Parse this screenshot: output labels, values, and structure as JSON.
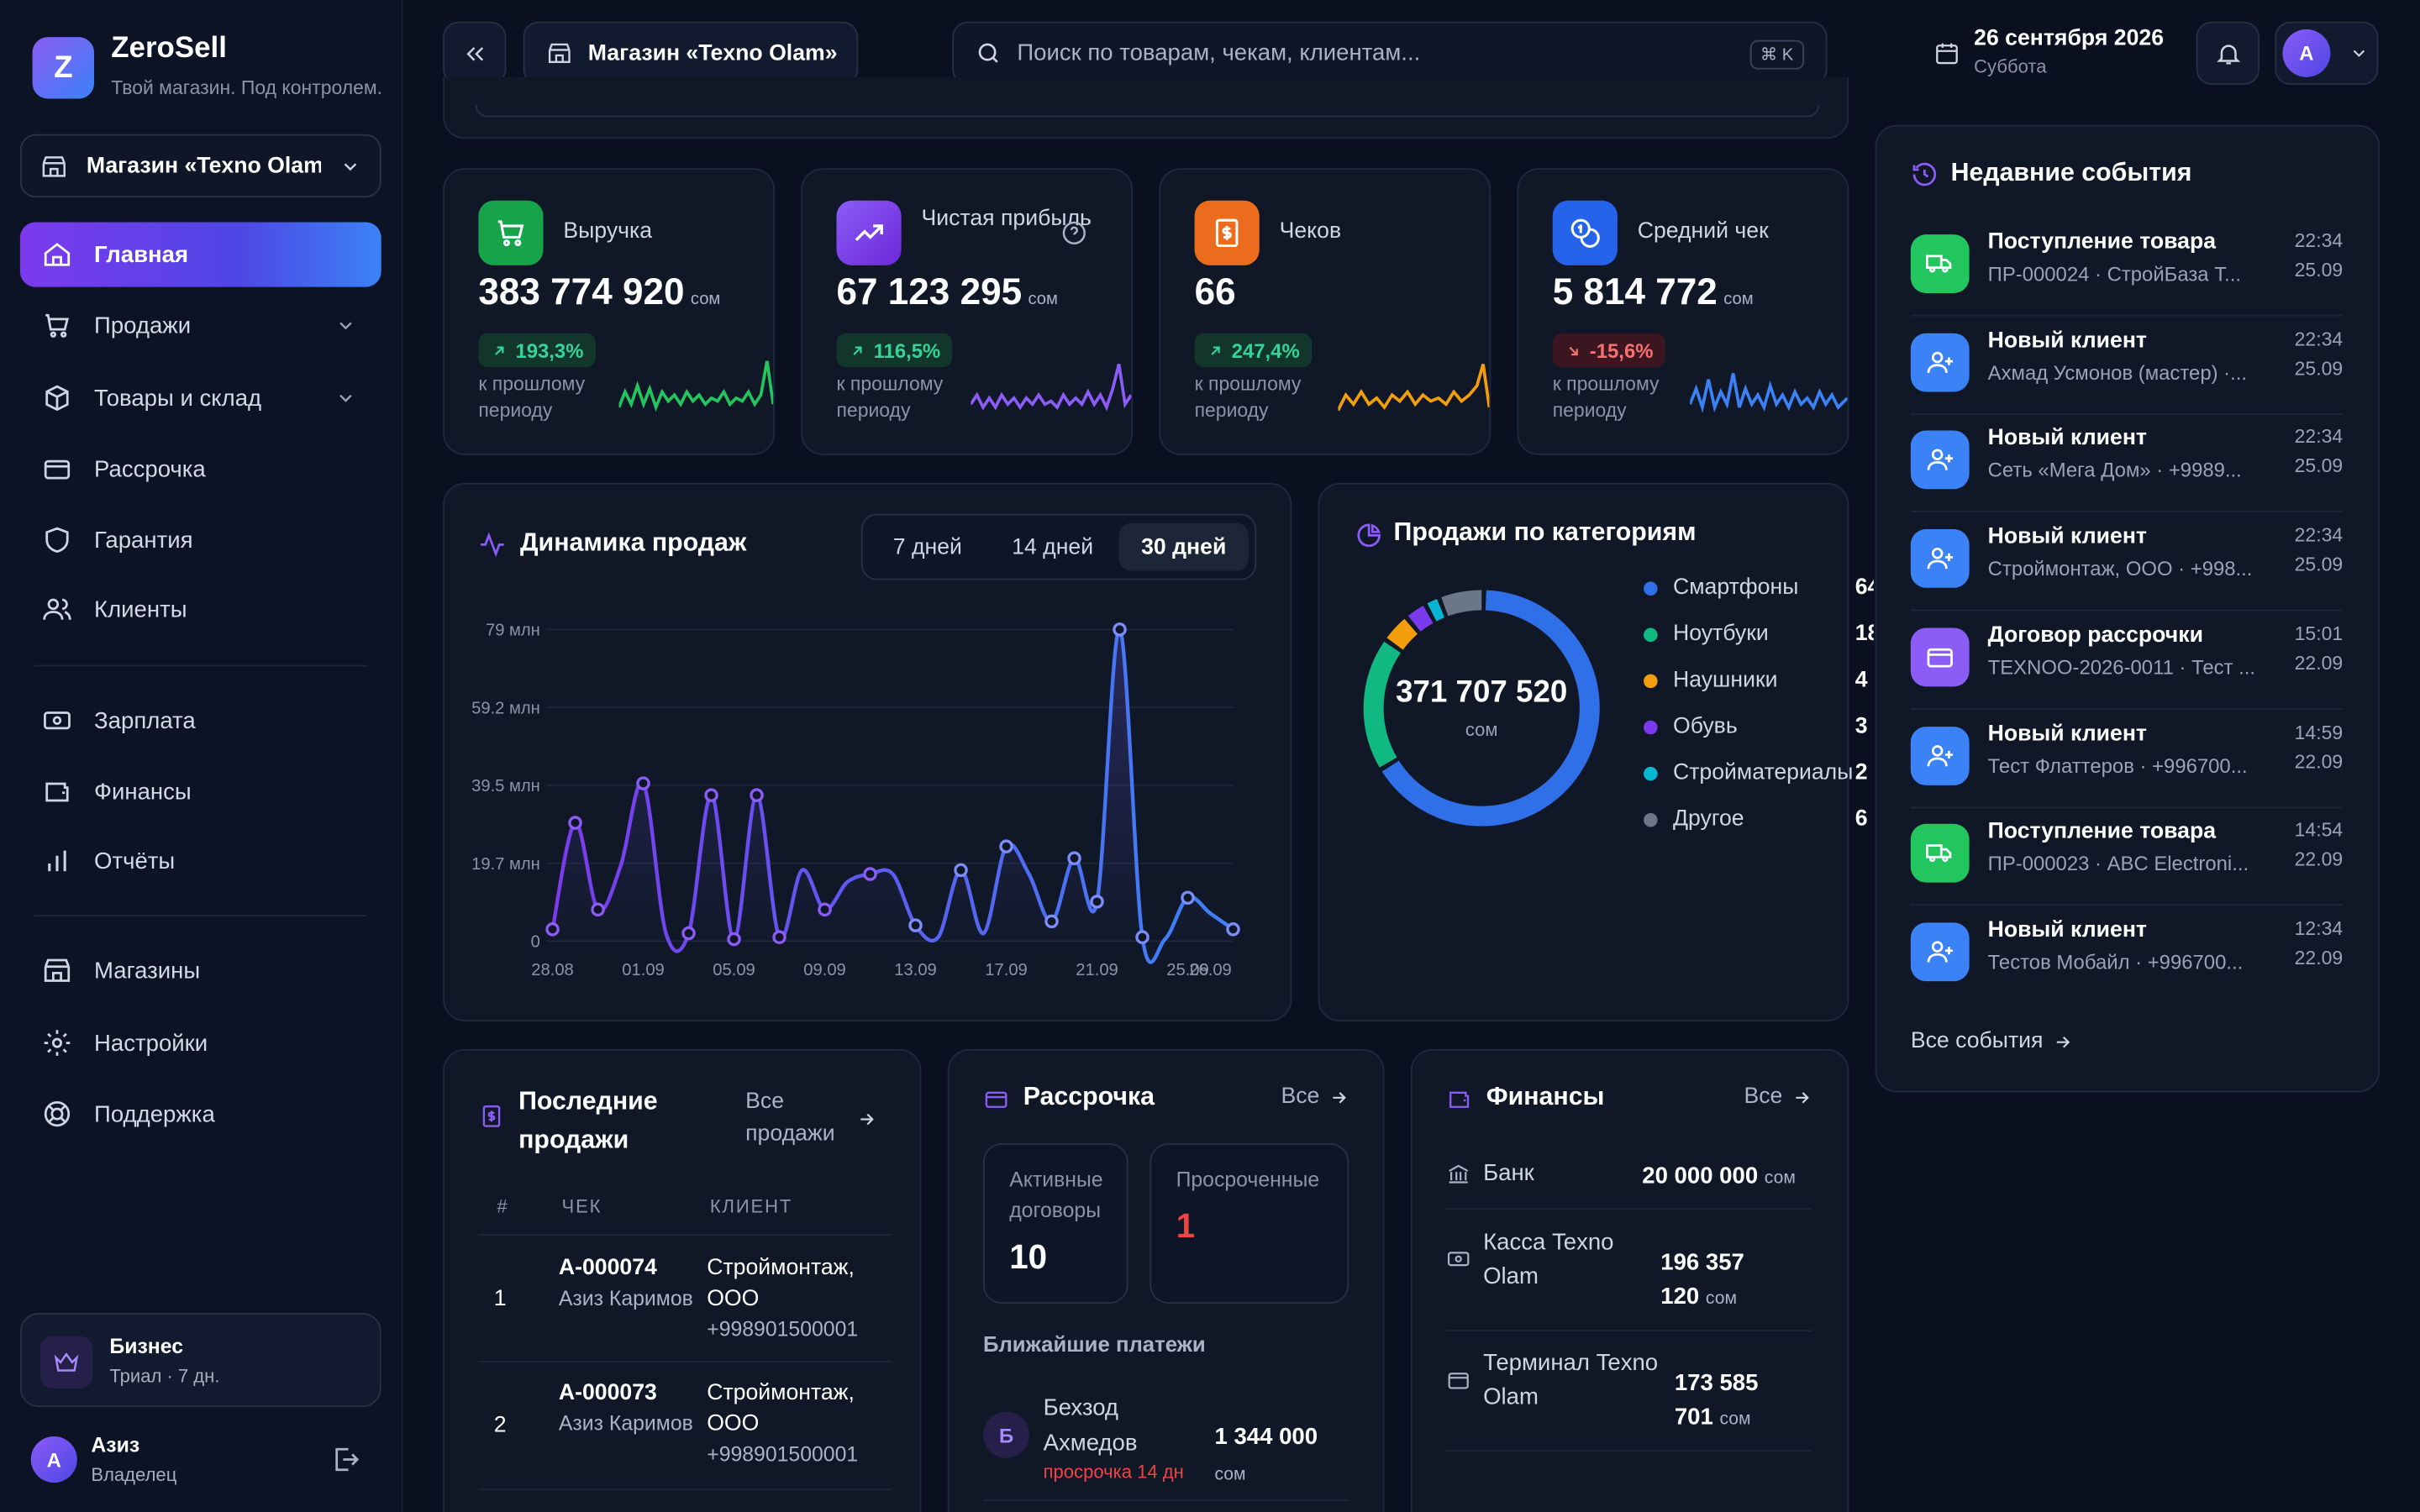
{
  "app": {
    "brand": "ZeroSell",
    "tagline": "Твой магазин. Под контролем.",
    "logo_letter": "Z"
  },
  "sidebar": {
    "store_selector": "Магазин «Texno Olam»",
    "items": [
      {
        "label": "Главная",
        "icon": "home-icon"
      },
      {
        "label": "Продажи",
        "icon": "cart-icon"
      },
      {
        "label": "Товары и склад",
        "icon": "box-icon"
      },
      {
        "label": "Рассрочка",
        "icon": "card-icon"
      },
      {
        "label": "Гарантия",
        "icon": "shield-icon"
      },
      {
        "label": "Клиенты",
        "icon": "users-icon"
      },
      {
        "label": "Зарплата",
        "icon": "cash-icon"
      },
      {
        "label": "Финансы",
        "icon": "wallet-icon"
      },
      {
        "label": "Отчёты",
        "icon": "bar-chart-icon"
      },
      {
        "label": "Магазины",
        "icon": "store-icon"
      },
      {
        "label": "Настройки",
        "icon": "gear-icon"
      },
      {
        "label": "Поддержка",
        "icon": "lifebuoy-icon"
      }
    ],
    "plan": {
      "name": "Бизнес",
      "sub": "Триал · 7 дн."
    },
    "user": {
      "initial": "A",
      "name": "Азиз",
      "role": "Владелец"
    }
  },
  "header": {
    "store_label": "Магазин «Texno Olam»",
    "search_placeholder": "Поиск по товарам, чекам, клиентам...",
    "search_shortcut": "⌘ K",
    "date": "26 сентября 2026",
    "weekday": "Суббота",
    "avatar_initial": "A"
  },
  "kpis": [
    {
      "label": "Выручка",
      "value": "383 774 920",
      "unit": "сом",
      "change": "193,3%",
      "trend": "up",
      "sub": "к прошлому периоду",
      "color": "#22c55e"
    },
    {
      "label": "Чистая прибыль",
      "value": "67 123 295",
      "unit": "сом",
      "change": "116,5%",
      "trend": "up",
      "sub": "к прошлому периоду",
      "color": "#8b5cf6"
    },
    {
      "label": "Чеков",
      "value": "66",
      "unit": "",
      "change": "247,4%",
      "trend": "up",
      "sub": "к прошлому периоду",
      "color": "#f59e0b"
    },
    {
      "label": "Средний чек",
      "value": "5 814 772",
      "unit": "сом",
      "change": "-15,6%",
      "trend": "down",
      "sub": "к прошлому периоду",
      "color": "#3b82f6"
    }
  ],
  "sales_chart": {
    "title": "Динамика продаж",
    "ranges": [
      "7 дней",
      "14 дней",
      "30 дней"
    ],
    "active_range": "30 дней"
  },
  "chart_data": {
    "type": "line",
    "x": [
      "28.08",
      "29.08",
      "30.08",
      "31.08",
      "01.09",
      "02.09",
      "03.09",
      "04.09",
      "05.09",
      "06.09",
      "07.09",
      "08.09",
      "09.09",
      "10.09",
      "11.09",
      "12.09",
      "13.09",
      "14.09",
      "15.09",
      "16.09",
      "17.09",
      "18.09",
      "19.09",
      "20.09",
      "21.09",
      "22.09",
      "23.09",
      "24.09",
      "25.09",
      "26.09",
      "27.09"
    ],
    "x_tick_labels": [
      "28.08",
      "01.09",
      "05.09",
      "09.09",
      "13.09",
      "17.09",
      "21.09",
      "25.09",
      "26.09"
    ],
    "y_tick_labels": [
      "0",
      "19.7 млн",
      "39.5 млн",
      "59.2 млн",
      "79 млн"
    ],
    "values": [
      3,
      30,
      8,
      19,
      40,
      2,
      2,
      37,
      0.5,
      37,
      1,
      18,
      8,
      15,
      17,
      17,
      4,
      1,
      18,
      2,
      24,
      17,
      5,
      21,
      10,
      79,
      1,
      0.5,
      11,
      7,
      3
    ],
    "ylim": [
      0,
      79
    ],
    "unit": "млн",
    "grid": true
  },
  "categories": {
    "title": "Продажи по категориям",
    "total": "371 707 520",
    "unit": "сом",
    "items": [
      {
        "name": "Смартфоны",
        "value": "64",
        "share": 64,
        "color": "#2f6fe8"
      },
      {
        "name": "Ноутбуки",
        "value": "18",
        "share": 18,
        "color": "#10b981"
      },
      {
        "name": "Наушники",
        "value": "4",
        "share": 4,
        "color": "#f59e0b"
      },
      {
        "name": "Обувь",
        "value": "3",
        "share": 3,
        "color": "#7c3aed"
      },
      {
        "name": "Стройматериалы",
        "value": "2",
        "share": 2,
        "color": "#06b6d4"
      },
      {
        "name": "Другое",
        "value": "6",
        "share": 6,
        "color": "#6b7686"
      }
    ]
  },
  "events": {
    "title": "Недавние события",
    "items": [
      {
        "title": "Поступление товара",
        "sub": "ПР-000024 · СтройБаза Т...",
        "time": "22:34",
        "date": "25.09",
        "kind": "truck",
        "color": "#22c55e"
      },
      {
        "title": "Новый клиент",
        "sub": "Ахмад Усмонов (мастер) ·...",
        "time": "22:34",
        "date": "25.09",
        "kind": "user",
        "color": "#3b82f6"
      },
      {
        "title": "Новый клиент",
        "sub": "Сеть «Мега Дом» · +9989...",
        "time": "22:34",
        "date": "25.09",
        "kind": "user",
        "color": "#3b82f6"
      },
      {
        "title": "Новый клиент",
        "sub": "Строймонтаж, ООО · +998...",
        "time": "22:34",
        "date": "25.09",
        "kind": "user",
        "color": "#3b82f6"
      },
      {
        "title": "Договор рассрочки",
        "sub": "TEXNOO-2026-0011 · Тест ...",
        "time": "15:01",
        "date": "22.09",
        "kind": "card",
        "color": "#8b5cf6"
      },
      {
        "title": "Новый клиент",
        "sub": "Тест Флаттеров · +996700...",
        "time": "14:59",
        "date": "22.09",
        "kind": "user",
        "color": "#3b82f6"
      },
      {
        "title": "Поступление товара",
        "sub": "ПР-000023 · ABC Electroni...",
        "time": "14:54",
        "date": "22.09",
        "kind": "truck",
        "color": "#22c55e"
      },
      {
        "title": "Новый клиент",
        "sub": "Тестов Мобайл · +996700...",
        "time": "12:34",
        "date": "22.09",
        "kind": "user",
        "color": "#3b82f6"
      }
    ],
    "all_link": "Все события"
  },
  "recent_sales": {
    "title": "Последние продажи",
    "all_link": "Все продажи",
    "columns": [
      "#",
      "ЧЕК",
      "КЛИЕНТ"
    ],
    "rows": [
      {
        "n": "1",
        "check": "A-000074",
        "seller": "Азиз Каримов",
        "client": "Строймонтаж, ООО",
        "phone": "+998901500001"
      },
      {
        "n": "2",
        "check": "A-000073",
        "seller": "Азиз Каримов",
        "client": "Строймонтаж, ООО",
        "phone": "+998901500001"
      }
    ]
  },
  "installments": {
    "title": "Рассрочка",
    "all_link": "Все",
    "active_label": "Активные договоры",
    "active_value": "10",
    "overdue_label": "Просроченные",
    "overdue_value": "1",
    "upcoming_title": "Ближайшие платежи",
    "upcoming": [
      {
        "initial": "Б",
        "name": "Бехзод Ахмедов",
        "note": "просрочка 14 дн",
        "amount": "1 344 000",
        "unit": "сом"
      }
    ]
  },
  "finances": {
    "title": "Финансы",
    "all_link": "Все",
    "accounts": [
      {
        "name": "Банк",
        "amount": "20 000 000",
        "unit": "сом",
        "icon": "bank-icon"
      },
      {
        "name": "Касса Texno Olam",
        "amount": "196 357 120",
        "unit": "сом",
        "icon": "cash-icon"
      },
      {
        "name": "Терминал Texno Olam",
        "amount": "173 585 701",
        "unit": "сом",
        "icon": "terminal-icon"
      }
    ]
  }
}
